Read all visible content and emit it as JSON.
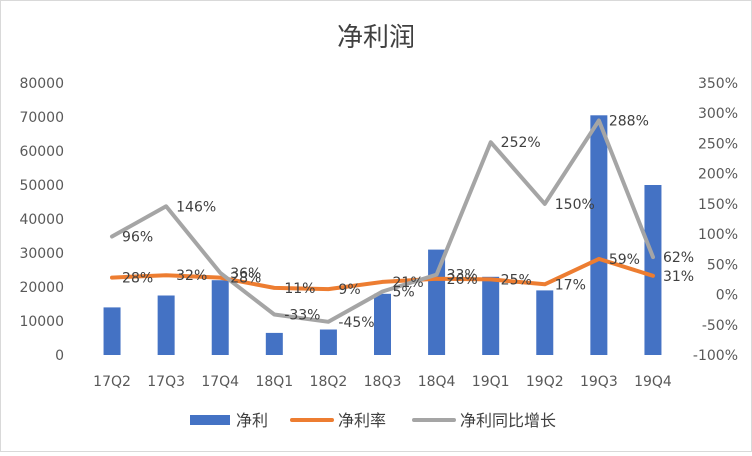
{
  "chart_data": {
    "type": "bar",
    "title": "净利润",
    "categories": [
      "17Q2",
      "17Q3",
      "17Q4",
      "18Q1",
      "18Q2",
      "18Q3",
      "18Q4",
      "19Q1",
      "19Q2",
      "19Q3",
      "19Q4"
    ],
    "left_axis": {
      "min": 0,
      "max": 80000,
      "ticks": [
        "0",
        "10000",
        "20000",
        "30000",
        "40000",
        "50000",
        "60000",
        "70000",
        "80000"
      ]
    },
    "right_axis": {
      "min": -100,
      "max": 350,
      "ticks": [
        "-100%",
        "-50%",
        "0%",
        "50%",
        "100%",
        "150%",
        "200%",
        "250%",
        "300%",
        "350%"
      ]
    },
    "series": [
      {
        "name": "净利",
        "type": "bar",
        "axis": "left",
        "color": "#4472C4",
        "values": [
          14000,
          17500,
          22000,
          6500,
          7500,
          18000,
          31000,
          23000,
          19000,
          70500,
          50000
        ]
      },
      {
        "name": "净利率",
        "type": "line",
        "axis": "right",
        "color": "#ED7D31",
        "values": [
          28,
          32,
          28,
          11,
          9,
          21,
          26,
          25,
          17,
          59,
          31
        ],
        "labels": [
          "28%",
          "32%",
          "28%",
          "11%",
          "9%",
          "21%",
          "26%",
          "25%",
          "17%",
          "59%",
          "31%"
        ]
      },
      {
        "name": "净利同比增长",
        "type": "line",
        "axis": "right",
        "color": "#A5A5A5",
        "values": [
          96,
          146,
          36,
          -33,
          -45,
          5,
          33,
          252,
          150,
          288,
          62
        ],
        "labels": [
          "96%",
          "146%",
          "36%",
          "-33%",
          "-45%",
          "5%",
          "33%",
          "252%",
          "150%",
          "288%",
          "62%"
        ]
      }
    ],
    "legend_position": "bottom",
    "grid": false
  }
}
